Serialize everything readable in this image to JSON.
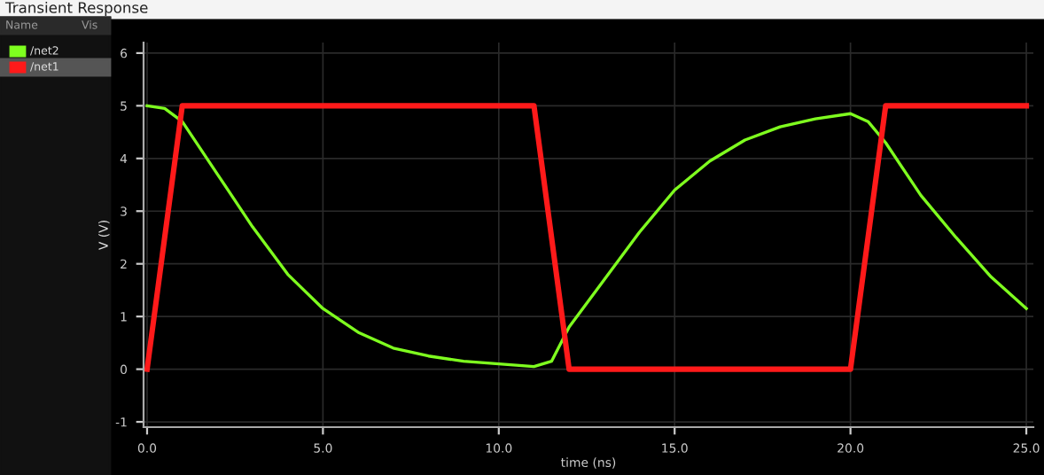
{
  "chart_data": {
    "type": "line",
    "title": "Transient Response",
    "xlabel": "time (ns)",
    "ylabel": "V (V)",
    "annotations": [
      "Name",
      "Vis"
    ],
    "series": [
      {
        "name": "/net2",
        "color": "#7fff1f",
        "x": [
          0,
          0.5,
          1,
          2,
          3,
          4,
          5,
          6,
          7,
          8,
          9,
          10,
          11,
          11.5,
          12,
          13,
          14,
          15,
          16,
          17,
          18,
          19,
          20,
          20.5,
          21,
          22,
          23,
          24,
          25
        ],
        "values": [
          5,
          4.95,
          4.7,
          3.7,
          2.7,
          1.8,
          1.15,
          0.7,
          0.4,
          0.25,
          0.15,
          0.1,
          0.05,
          0.15,
          0.8,
          1.7,
          2.6,
          3.4,
          3.95,
          4.35,
          4.6,
          4.75,
          4.85,
          4.7,
          4.3,
          3.3,
          2.5,
          1.75,
          1.15
        ]
      },
      {
        "name": "/net1",
        "color": "#ff1a1a",
        "x": [
          0,
          1,
          11,
          12,
          20,
          21,
          25
        ],
        "values": [
          0,
          5,
          5,
          0,
          0,
          5,
          5
        ]
      }
    ],
    "xlim": [
      -0.1,
      25.2
    ],
    "ylim": [
      -1.1,
      6.2
    ],
    "xticks": [
      {
        "value": 0,
        "label": "0.0"
      },
      {
        "value": 5,
        "label": "5.0"
      },
      {
        "value": 10,
        "label": "10.0"
      },
      {
        "value": 15,
        "label": "15.0"
      },
      {
        "value": 20,
        "label": "20.0"
      },
      {
        "value": 25,
        "label": "25.0"
      }
    ],
    "yticks": [
      -1,
      0,
      1,
      2,
      3,
      4,
      5,
      6
    ],
    "grid": true,
    "legend": "left",
    "marker": "none",
    "line_style": "solid"
  }
}
